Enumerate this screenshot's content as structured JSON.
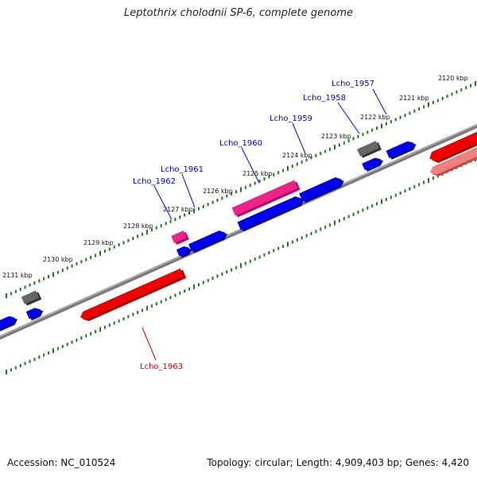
{
  "header": {
    "title": "Leptothrix cholodnii SP-6, complete genome"
  },
  "footer": {
    "accession_text": "Accession: NC_010524",
    "summary_text": "Topology: circular; Length: 4,909,403 bp; Genes: 4,420"
  },
  "colors": {
    "backbone": "#808080",
    "tick_dots": "#1a7a1a",
    "gene_forward": "#0000ee",
    "gene_highlight": "#ee2288",
    "gene_reverse": "#ee0000",
    "gene_reverse_light": "#f08080",
    "gene_gray": "#666666",
    "label_blue": "#0000cc",
    "label_red": "#cc0000"
  },
  "scale_labels": [
    "2120 kbp",
    "2121 kbp",
    "2122 kbp",
    "2123 kbp",
    "2124 kbp",
    "2125 kbp",
    "2126 kbp",
    "2127 kbp",
    "2128 kbp",
    "2129 kbp",
    "2130 kbp",
    "2131 kbp"
  ],
  "gene_labels": [
    {
      "name": "Lcho_1957",
      "color": "label_blue"
    },
    {
      "name": "Lcho_1958",
      "color": "label_blue"
    },
    {
      "name": "Lcho_1959",
      "color": "label_blue"
    },
    {
      "name": "Lcho_1960",
      "color": "label_blue"
    },
    {
      "name": "Lcho_1961",
      "color": "label_blue"
    },
    {
      "name": "Lcho_1962",
      "color": "label_blue"
    },
    {
      "name": "Lcho_1963",
      "color": "label_red"
    }
  ]
}
